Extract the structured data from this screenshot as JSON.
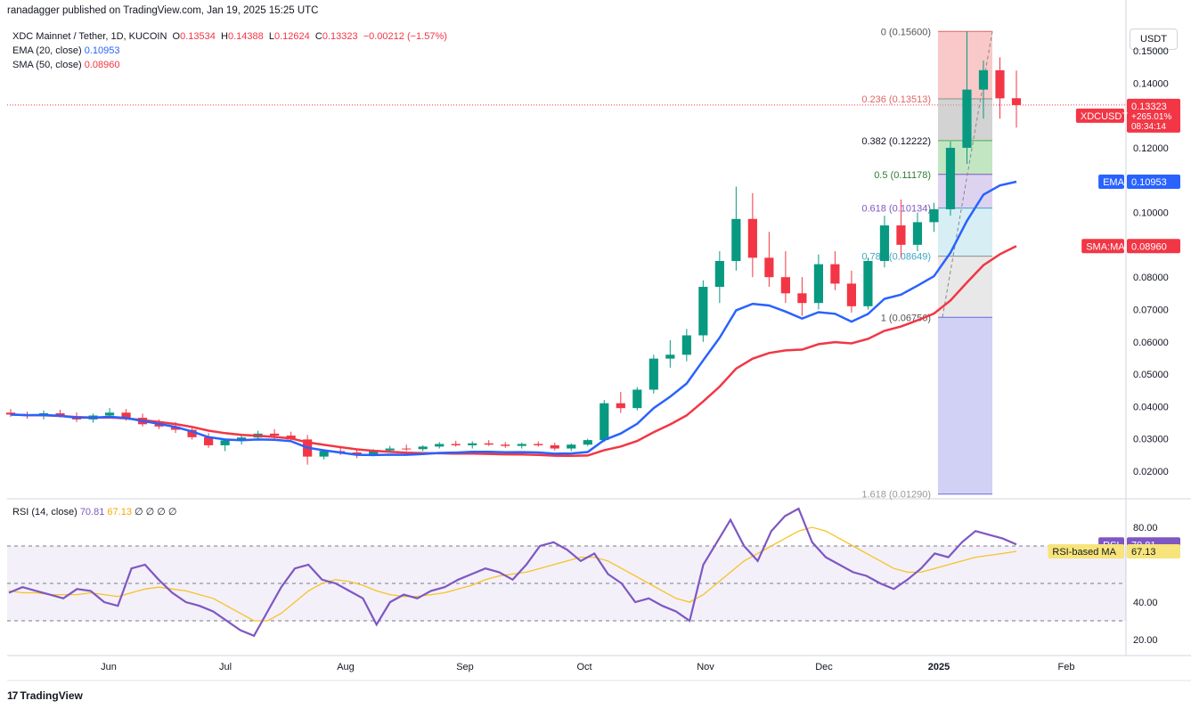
{
  "header": {
    "publisher": "ranadagger published on TradingView.com, Jan 19, 2025 15:25 UTC"
  },
  "legend": {
    "symbol": "XDC Mainnet / Tether, 1D, KUCOIN",
    "o_label": "O",
    "o": "0.13534",
    "h_label": "H",
    "h": "0.14388",
    "l_label": "L",
    "l": "0.12624",
    "c_label": "C",
    "c": "0.13323",
    "change": "−0.00212 (−1.57%)",
    "ema_label": "EMA (20, close)",
    "ema_value": "0.10953",
    "sma_label": "SMA (50, close)",
    "sma_value": "0.08960"
  },
  "currency_button": "USDT",
  "price_badge": {
    "symbol": "XDCUSDT",
    "price": "0.13323",
    "change": "+265.01%",
    "countdown": "08:34:14"
  },
  "ema_badge": {
    "label": "EMA",
    "value": "0.10953"
  },
  "sma_badge": {
    "label": "SMA:MA",
    "value": "0.08960"
  },
  "rsi_legend": {
    "label": "RSI (14, close)",
    "rsi": "70.81",
    "ma": "67.13",
    "extra": "∅ ∅ ∅ ∅"
  },
  "rsi_badge": {
    "label": "RSI",
    "value": "70.81"
  },
  "rsi_ma_badge": {
    "label": "RSI-based MA",
    "value": "67.13"
  },
  "fib_labels": [
    {
      "text": "0 (0.15600)",
      "price": 0.156
    },
    {
      "text": "0.236 (0.13513)",
      "price": 0.13513
    },
    {
      "text": "0.382 (0.12222)",
      "price": 0.12222
    },
    {
      "text": "0.5 (0.11178)",
      "price": 0.11178
    },
    {
      "text": "0.618 (0.10134)",
      "price": 0.10134
    },
    {
      "text": "0.786 (0.08649)",
      "price": 0.08649
    },
    {
      "text": "1 (0.06756)",
      "price": 0.06756
    },
    {
      "text": "1.618 (0.01290)",
      "price": 0.0129
    }
  ],
  "brand": {
    "logo": "17",
    "name": "TradingView"
  },
  "chart_data": {
    "type": "candlestick",
    "price_axis": {
      "ticks": [
        "0.15000",
        "0.14000",
        "0.13000",
        "0.12000",
        "0.11000",
        "0.10000",
        "0.09000",
        "0.08000",
        "0.07000",
        "0.06000",
        "0.05000",
        "0.04000",
        "0.03000",
        "0.02000"
      ],
      "range": [
        0.012,
        0.158
      ]
    },
    "time_axis": {
      "ticks": [
        "Jun",
        "Jul",
        "Aug",
        "Sep",
        "Oct",
        "Nov",
        "Dec",
        "2025",
        "Feb"
      ]
    },
    "candles_ohlc": [
      [
        0.0381,
        0.0392,
        0.0368,
        0.0375
      ],
      [
        0.0375,
        0.0384,
        0.0362,
        0.0372
      ],
      [
        0.0372,
        0.0388,
        0.036,
        0.0379
      ],
      [
        0.0379,
        0.039,
        0.0366,
        0.037
      ],
      [
        0.037,
        0.0382,
        0.0352,
        0.036
      ],
      [
        0.036,
        0.0378,
        0.035,
        0.0372
      ],
      [
        0.0372,
        0.0395,
        0.0363,
        0.0381
      ],
      [
        0.0381,
        0.0392,
        0.0356,
        0.0365
      ],
      [
        0.0365,
        0.0378,
        0.0338,
        0.0345
      ],
      [
        0.0345,
        0.036,
        0.033,
        0.0338
      ],
      [
        0.0338,
        0.0352,
        0.0318,
        0.0328
      ],
      [
        0.0328,
        0.034,
        0.0298,
        0.0305
      ],
      [
        0.0305,
        0.0318,
        0.0272,
        0.028
      ],
      [
        0.028,
        0.03,
        0.0262,
        0.0295
      ],
      [
        0.0295,
        0.0312,
        0.0282,
        0.0304
      ],
      [
        0.0304,
        0.0325,
        0.0294,
        0.0316
      ],
      [
        0.0316,
        0.033,
        0.0298,
        0.031
      ],
      [
        0.031,
        0.0322,
        0.0294,
        0.0298
      ],
      [
        0.0298,
        0.0312,
        0.022,
        0.0245
      ],
      [
        0.0245,
        0.0268,
        0.0236,
        0.0262
      ],
      [
        0.0262,
        0.0276,
        0.025,
        0.0258
      ],
      [
        0.0258,
        0.027,
        0.024,
        0.0252
      ],
      [
        0.0252,
        0.0268,
        0.0246,
        0.0264
      ],
      [
        0.0264,
        0.0278,
        0.0258,
        0.027
      ],
      [
        0.027,
        0.0282,
        0.0262,
        0.0268
      ],
      [
        0.0268,
        0.028,
        0.0262,
        0.0276
      ],
      [
        0.0276,
        0.029,
        0.027,
        0.0284
      ],
      [
        0.0284,
        0.0294,
        0.0276,
        0.028
      ],
      [
        0.028,
        0.0292,
        0.027,
        0.0286
      ],
      [
        0.0286,
        0.0296,
        0.0278,
        0.0282
      ],
      [
        0.0282,
        0.029,
        0.0272,
        0.0278
      ],
      [
        0.0278,
        0.0288,
        0.027,
        0.0284
      ],
      [
        0.0284,
        0.0292,
        0.0276,
        0.028
      ],
      [
        0.028,
        0.0288,
        0.0264,
        0.027
      ],
      [
        0.027,
        0.0286,
        0.0262,
        0.0282
      ],
      [
        0.0282,
        0.03,
        0.0278,
        0.0296
      ],
      [
        0.0296,
        0.042,
        0.029,
        0.041
      ],
      [
        0.041,
        0.0445,
        0.038,
        0.0395
      ],
      [
        0.0395,
        0.046,
        0.0388,
        0.0452
      ],
      [
        0.0452,
        0.056,
        0.044,
        0.0548
      ],
      [
        0.0548,
        0.0605,
        0.052,
        0.056
      ],
      [
        0.056,
        0.064,
        0.054,
        0.062
      ],
      [
        0.062,
        0.079,
        0.06,
        0.077
      ],
      [
        0.077,
        0.088,
        0.072,
        0.085
      ],
      [
        0.085,
        0.108,
        0.082,
        0.098
      ],
      [
        0.098,
        0.106,
        0.08,
        0.086
      ],
      [
        0.086,
        0.094,
        0.077,
        0.08
      ],
      [
        0.08,
        0.088,
        0.072,
        0.075
      ],
      [
        0.075,
        0.08,
        0.068,
        0.072
      ],
      [
        0.072,
        0.087,
        0.07,
        0.084
      ],
      [
        0.084,
        0.088,
        0.076,
        0.078
      ],
      [
        0.078,
        0.082,
        0.069,
        0.071
      ],
      [
        0.071,
        0.086,
        0.07,
        0.085
      ],
      [
        0.085,
        0.099,
        0.083,
        0.096
      ],
      [
        0.096,
        0.104,
        0.086,
        0.09
      ],
      [
        0.09,
        0.1,
        0.088,
        0.097
      ],
      [
        0.097,
        0.103,
        0.094,
        0.101
      ],
      [
        0.101,
        0.122,
        0.099,
        0.12
      ],
      [
        0.12,
        0.156,
        0.115,
        0.138
      ],
      [
        0.138,
        0.147,
        0.129,
        0.144
      ],
      [
        0.144,
        0.148,
        0.129,
        0.1353
      ],
      [
        0.13534,
        0.14388,
        0.12624,
        0.13323
      ]
    ],
    "ema20_end": 0.10953,
    "sma50_end": 0.0896,
    "rsi": {
      "overbought": 70,
      "oversold": 30,
      "middle": 50,
      "ticks": [
        "80.00",
        "40.00",
        "20.00"
      ],
      "last": 70.81,
      "ma_last": 67.13,
      "values": [
        45,
        48,
        46,
        44,
        42,
        47,
        46,
        40,
        38,
        58,
        60,
        52,
        45,
        40,
        38,
        35,
        30,
        25,
        22,
        35,
        48,
        58,
        60,
        52,
        50,
        46,
        42,
        28,
        40,
        44,
        42,
        46,
        48,
        52,
        55,
        58,
        56,
        52,
        60,
        70,
        72,
        68,
        62,
        66,
        55,
        50,
        40,
        42,
        38,
        35,
        30,
        60,
        72,
        84,
        70,
        62,
        78,
        86,
        90,
        72,
        64,
        60,
        56,
        54,
        50,
        47,
        52,
        58,
        66,
        64,
        72,
        78,
        76,
        74,
        70.81
      ],
      "ma_values": [
        46,
        45,
        45,
        44,
        44,
        44,
        45,
        44,
        43,
        45,
        47,
        48,
        47,
        46,
        44,
        42,
        38,
        34,
        30,
        30,
        34,
        40,
        46,
        50,
        52,
        51,
        49,
        46,
        44,
        43,
        43,
        44,
        45,
        47,
        49,
        52,
        54,
        55,
        56,
        58,
        60,
        62,
        64,
        64,
        62,
        58,
        54,
        50,
        46,
        42,
        40,
        44,
        50,
        56,
        62,
        66,
        70,
        74,
        78,
        80,
        78,
        74,
        70,
        66,
        62,
        58,
        56,
        56,
        58,
        60,
        62,
        64,
        65,
        66,
        67.13
      ]
    }
  }
}
